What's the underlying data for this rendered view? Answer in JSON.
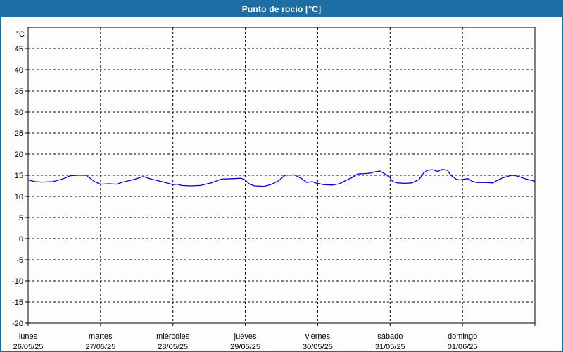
{
  "window": {
    "title": "Punto de rocío [°C]"
  },
  "colors": {
    "accent": "#1C6EA4",
    "line": "#0000CC",
    "grid": "#000000",
    "plot_bg": "#FDFEFB",
    "text": "#000000"
  },
  "chart_data": {
    "type": "line",
    "title": "Punto de rocío [°C]",
    "unit_label": "°C",
    "ylim": [
      -20,
      50
    ],
    "y_ticks": [
      45,
      40,
      35,
      30,
      25,
      20,
      15,
      10,
      5,
      0,
      -5,
      -10,
      -15,
      -20
    ],
    "grid": "dashed",
    "legend_position": "none",
    "x_days": [
      {
        "name": "lunes",
        "date": "26/05/25"
      },
      {
        "name": "martes",
        "date": "27/05/25"
      },
      {
        "name": "miércoles",
        "date": "28/05/25"
      },
      {
        "name": "jueves",
        "date": "29/05/25"
      },
      {
        "name": "viernes",
        "date": "30/05/25"
      },
      {
        "name": "sábado",
        "date": "31/05/25"
      },
      {
        "name": "domingo",
        "date": "01/06/25"
      }
    ],
    "x_range_days": [
      0,
      7
    ],
    "series": [
      {
        "name": "Punto de rocío",
        "color": "#0000CC",
        "points": [
          [
            0.0,
            13.9
          ],
          [
            0.1,
            13.5
          ],
          [
            0.19,
            13.4
          ],
          [
            0.34,
            13.5
          ],
          [
            0.49,
            14.2
          ],
          [
            0.58,
            14.9
          ],
          [
            0.68,
            15.0
          ],
          [
            0.8,
            15.0
          ],
          [
            0.92,
            13.5
          ],
          [
            1.0,
            12.9
          ],
          [
            1.12,
            13.0
          ],
          [
            1.22,
            12.9
          ],
          [
            1.31,
            13.4
          ],
          [
            1.46,
            14.0
          ],
          [
            1.59,
            14.7
          ],
          [
            1.7,
            14.1
          ],
          [
            1.85,
            13.5
          ],
          [
            2.0,
            12.8
          ],
          [
            2.06,
            12.9
          ],
          [
            2.12,
            12.6
          ],
          [
            2.24,
            12.5
          ],
          [
            2.38,
            12.6
          ],
          [
            2.53,
            13.2
          ],
          [
            2.67,
            14.1
          ],
          [
            2.82,
            14.2
          ],
          [
            2.94,
            14.3
          ],
          [
            2.99,
            14.0
          ],
          [
            3.06,
            12.9
          ],
          [
            3.13,
            12.5
          ],
          [
            3.26,
            12.4
          ],
          [
            3.35,
            12.8
          ],
          [
            3.45,
            13.6
          ],
          [
            3.55,
            15.0
          ],
          [
            3.68,
            15.1
          ],
          [
            3.77,
            14.3
          ],
          [
            3.85,
            13.3
          ],
          [
            3.92,
            13.5
          ],
          [
            3.97,
            13.2
          ],
          [
            4.0,
            13.1
          ],
          [
            4.08,
            12.8
          ],
          [
            4.2,
            12.7
          ],
          [
            4.3,
            13.0
          ],
          [
            4.39,
            13.8
          ],
          [
            4.47,
            14.4
          ],
          [
            4.55,
            15.3
          ],
          [
            4.65,
            15.4
          ],
          [
            4.72,
            15.5
          ],
          [
            4.79,
            15.8
          ],
          [
            4.86,
            16.0
          ],
          [
            4.92,
            15.4
          ],
          [
            4.99,
            14.6
          ],
          [
            5.04,
            13.5
          ],
          [
            5.1,
            13.2
          ],
          [
            5.2,
            13.1
          ],
          [
            5.3,
            13.2
          ],
          [
            5.4,
            14.0
          ],
          [
            5.46,
            15.5
          ],
          [
            5.52,
            16.2
          ],
          [
            5.59,
            16.3
          ],
          [
            5.66,
            15.9
          ],
          [
            5.72,
            16.4
          ],
          [
            5.79,
            16.2
          ],
          [
            5.84,
            15.0
          ],
          [
            5.91,
            14.1
          ],
          [
            5.96,
            13.9
          ],
          [
            6.03,
            14.1
          ],
          [
            6.08,
            14.2
          ],
          [
            6.13,
            13.6
          ],
          [
            6.2,
            13.3
          ],
          [
            6.32,
            13.3
          ],
          [
            6.42,
            13.2
          ],
          [
            6.49,
            13.9
          ],
          [
            6.56,
            14.4
          ],
          [
            6.65,
            14.9
          ],
          [
            6.71,
            15.0
          ],
          [
            6.8,
            14.6
          ],
          [
            6.86,
            14.2
          ],
          [
            6.93,
            13.9
          ],
          [
            6.98,
            13.7
          ],
          [
            7.0,
            13.6
          ]
        ]
      }
    ]
  }
}
